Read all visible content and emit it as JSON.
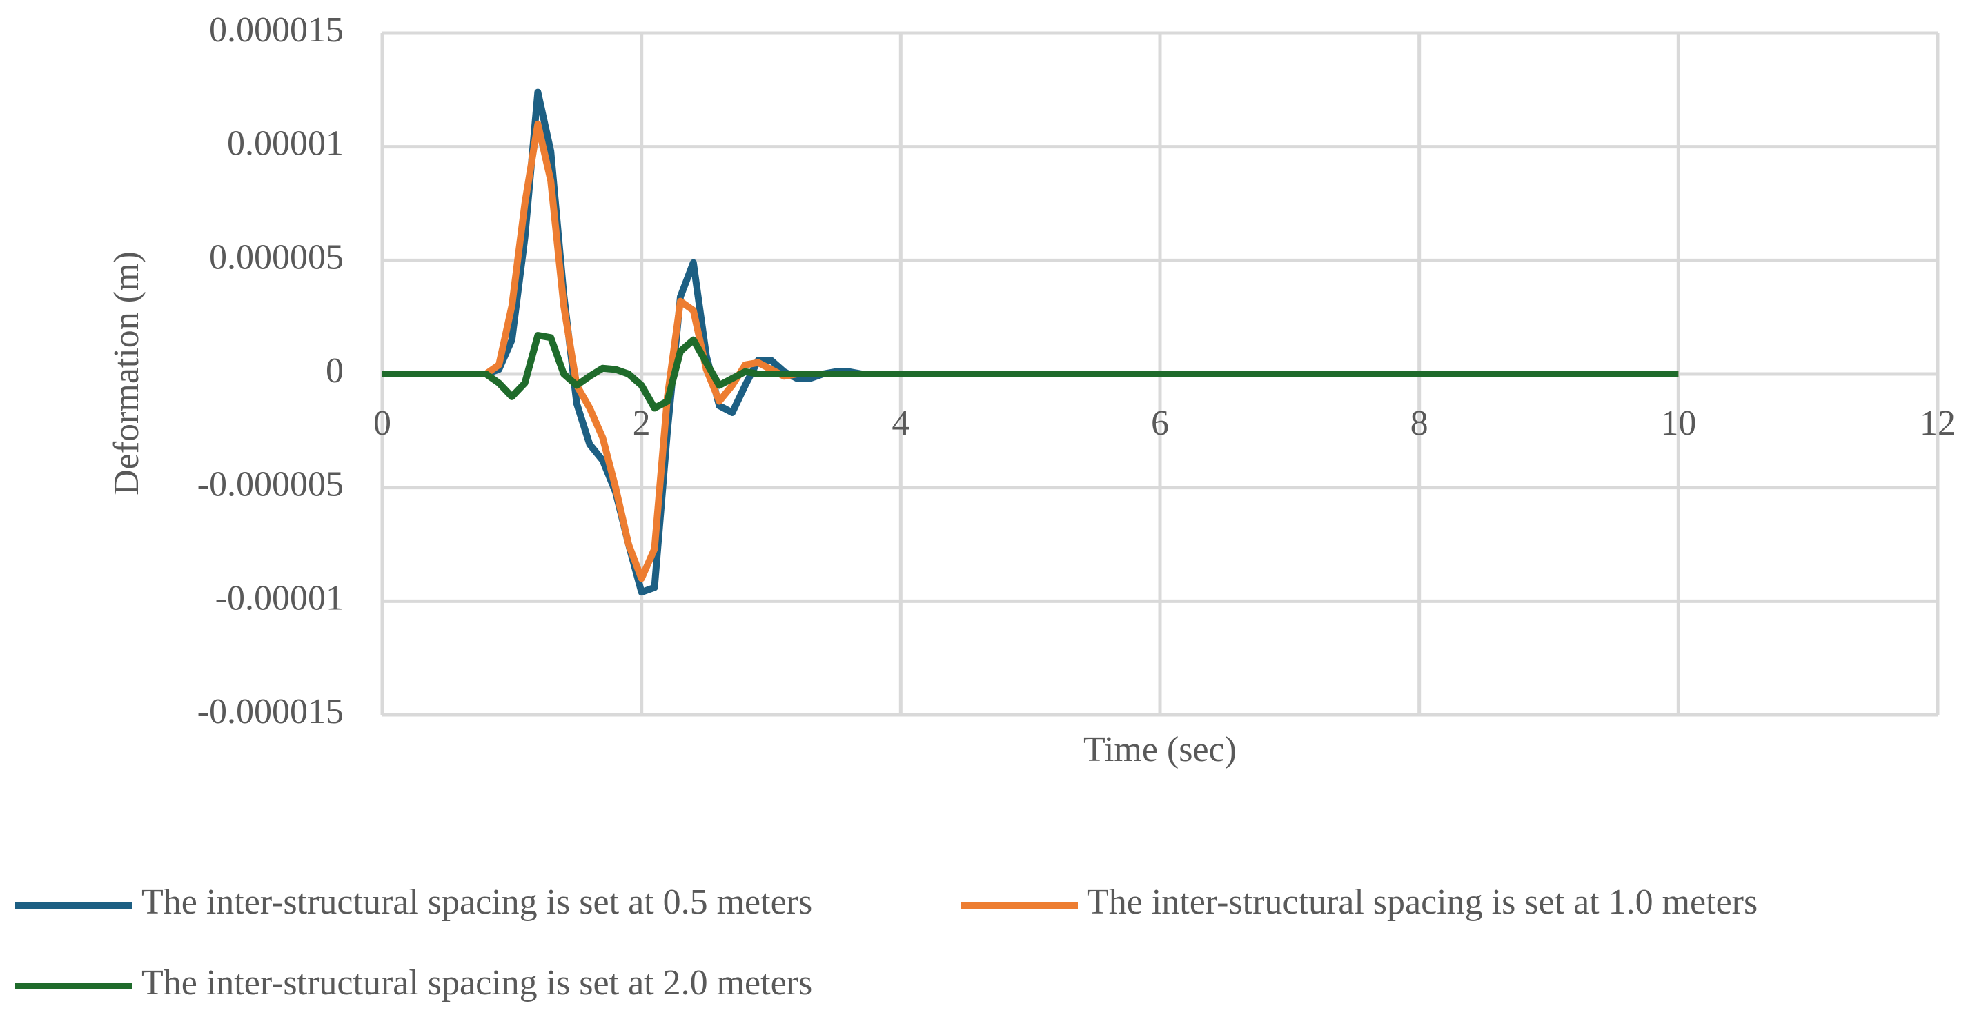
{
  "chart_data": {
    "type": "line",
    "xlabel": "Time (sec)",
    "ylabel": "Deformation (m)",
    "x": [
      0,
      0.8,
      0.9,
      1.0,
      1.1,
      1.2,
      1.3,
      1.4,
      1.5,
      1.6,
      1.7,
      1.8,
      1.9,
      2.0,
      2.1,
      2.2,
      2.3,
      2.4,
      2.5,
      2.6,
      2.7,
      2.8,
      2.9,
      3.0,
      3.1,
      3.2,
      3.3,
      3.4,
      3.5,
      3.6,
      3.7,
      3.8,
      10
    ],
    "series": [
      {
        "name": "The inter-structural spacing is set at 0.5 meters",
        "color": "#1d5f83",
        "values": [
          0,
          0,
          2e-07,
          1.5e-06,
          6e-06,
          1.24e-05,
          9.8e-06,
          3.5e-06,
          -1.3e-06,
          -3.1e-06,
          -3.8e-06,
          -5.2e-06,
          -7.5e-06,
          -9.6e-06,
          -9.4e-06,
          -2.5e-06,
          3.4e-06,
          4.9e-06,
          8e-07,
          -1.4e-06,
          -1.7e-06,
          -5e-07,
          6e-07,
          6e-07,
          1e-07,
          -2e-07,
          -2e-07,
          0,
          1e-07,
          1e-07,
          0,
          0,
          0
        ]
      },
      {
        "name": "The inter-structural spacing is set at 1.0 meters",
        "color": "#ed7d31",
        "values": [
          0,
          0,
          4e-07,
          3e-06,
          7.5e-06,
          1.1e-05,
          8.5e-06,
          3e-06,
          -5e-07,
          -1.5e-06,
          -2.8e-06,
          -5e-06,
          -7.5e-06,
          -9e-06,
          -7.7e-06,
          -1e-06,
          3.2e-06,
          2.8e-06,
          2e-07,
          -1.2e-06,
          -5e-07,
          4e-07,
          5e-07,
          2e-07,
          -1e-07,
          0,
          0,
          0,
          0,
          0,
          0,
          0,
          0
        ]
      },
      {
        "name": "The inter-structural spacing is set at 2.0 meters",
        "color": "#1f6b2b",
        "values": [
          0,
          0,
          -4e-07,
          -1e-06,
          -4e-07,
          1.7e-06,
          1.6e-06,
          0,
          -5e-07,
          -1e-07,
          2.5e-07,
          2e-07,
          0,
          -5e-07,
          -1.5e-06,
          -1.2e-06,
          1e-06,
          1.5e-06,
          5e-07,
          -5e-07,
          -2e-07,
          1e-07,
          0,
          0,
          0,
          0,
          0,
          0,
          0,
          0,
          0,
          0,
          0
        ]
      }
    ],
    "xlim": [
      0,
      12
    ],
    "xticks": [
      0,
      2,
      4,
      6,
      8,
      10,
      12
    ],
    "ylim": [
      -1.5e-05,
      1.5e-05
    ],
    "yticks": [
      -1.5e-05,
      -1e-05,
      -5e-06,
      0,
      5e-06,
      1e-05,
      1.5e-05
    ],
    "grid": true,
    "legend": "bottom"
  }
}
